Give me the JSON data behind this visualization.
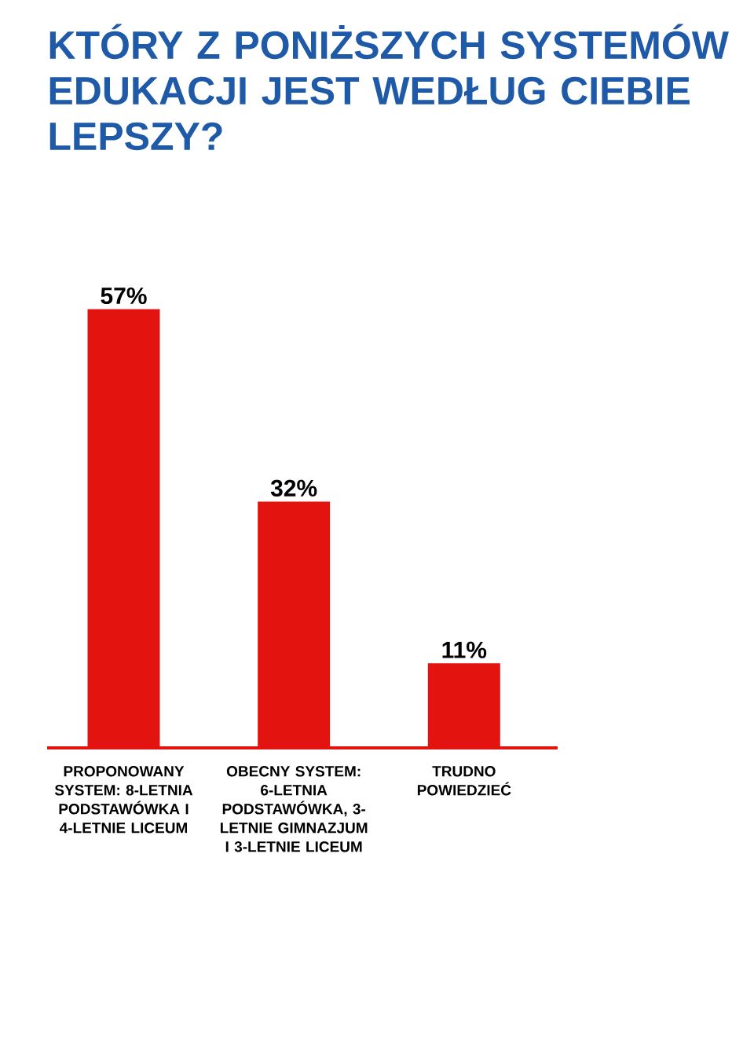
{
  "chart_data": {
    "type": "bar",
    "title": "KTÓRY Z PONIŻSZYCH SYSTEMÓW EDUKACJI JEST WEDŁUG CIEBIE LEPSZY?",
    "categories": [
      "PROPONOWANY SYSTEM: 8-LETNIA PODSTAWÓWKA I 4-LETNIE LICEUM",
      "OBECNY SYSTEM: 6-LETNIA PODSTAWÓWKA, 3-LETNIE GIMNAZJUM I 3-LETNIE LICEUM",
      "TRUDNO POWIEDZIEĆ"
    ],
    "values": [
      57,
      32,
      11
    ],
    "value_labels": [
      "57%",
      "32%",
      "11%"
    ],
    "color": "#e3140f"
  }
}
